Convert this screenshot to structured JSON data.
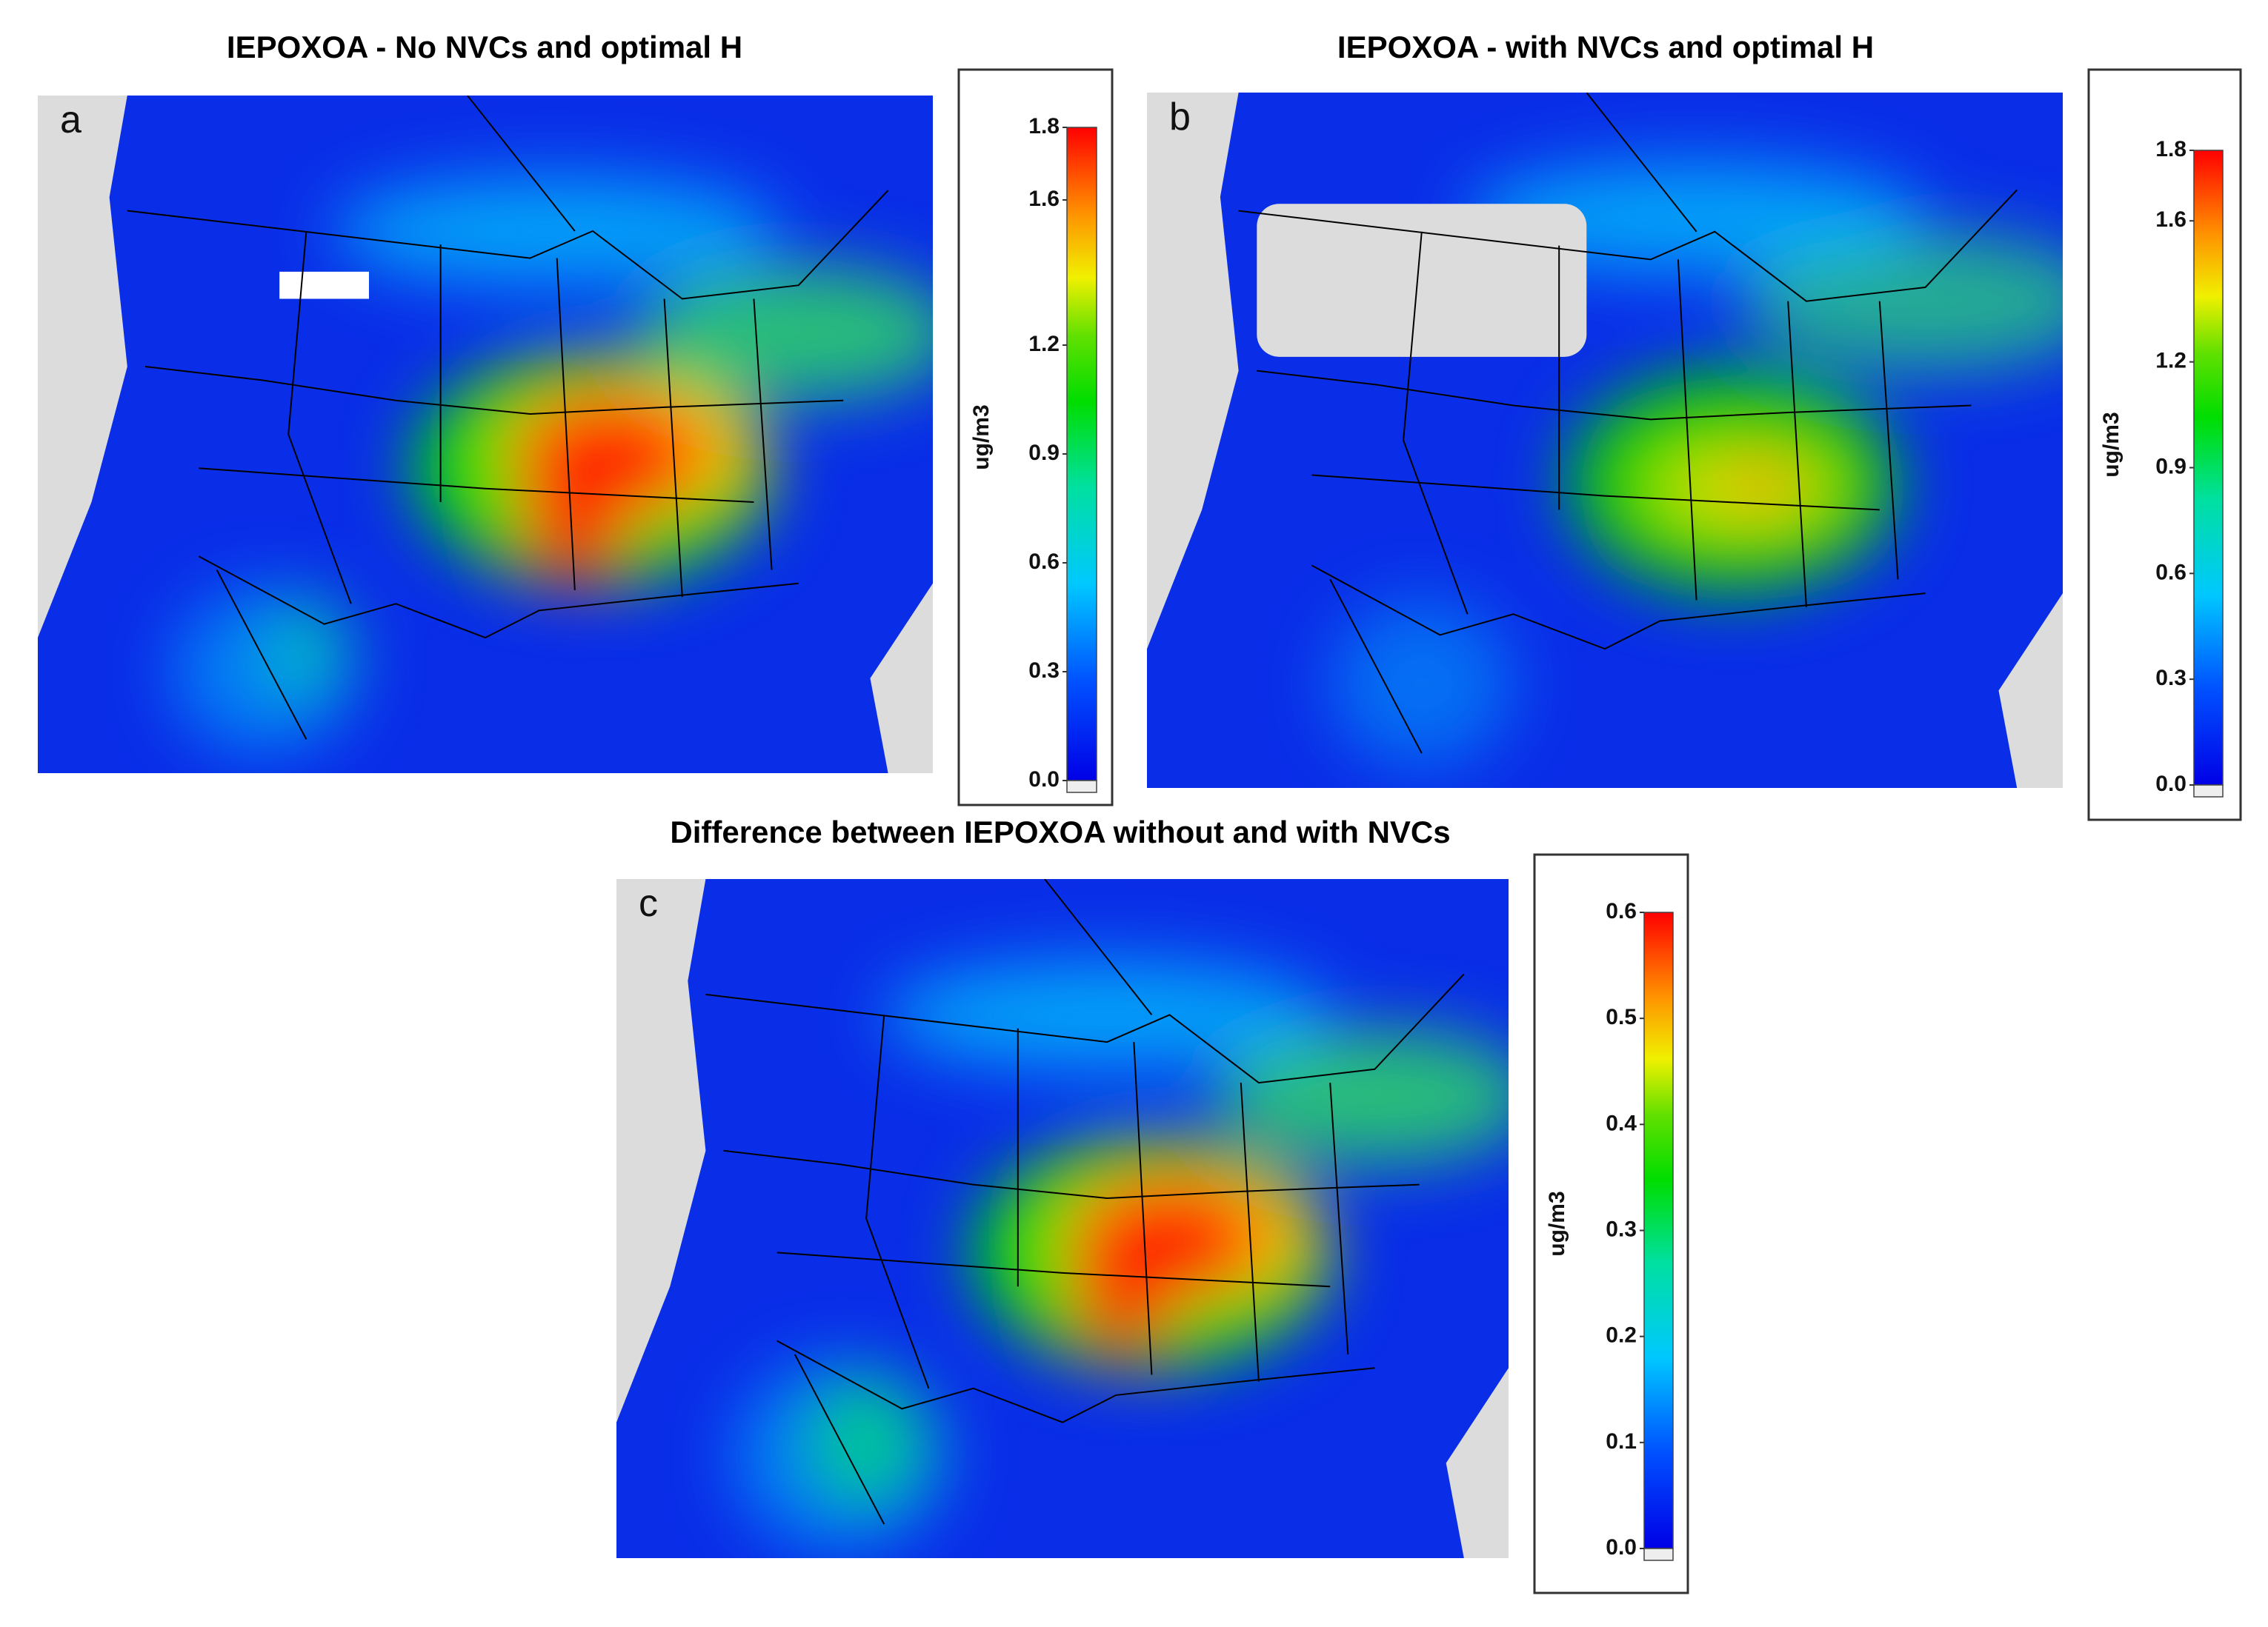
{
  "panels": [
    {
      "title": "IEPOXOA - No NVCs and optimal H",
      "letter": "a",
      "unit": "ug/m3",
      "colorbar": {
        "range": [
          0,
          1.8
        ],
        "ticks": [
          {
            "value": 0,
            "label": "0.0"
          },
          0.3,
          0.6,
          0.9,
          1.2,
          1.6,
          1.8
        ]
      }
    },
    {
      "title": "IEPOXOA - with NVCs and optimal H",
      "letter": "b",
      "unit": "ug/m3",
      "colorbar": {
        "range": [
          0,
          1.8
        ],
        "ticks": [
          {
            "value": 0,
            "label": "0.0"
          },
          0.3,
          0.6,
          0.9,
          1.2,
          1.6,
          1.8
        ]
      }
    },
    {
      "title": "Difference between IEPOXOA without and with NVCs",
      "letter": "c",
      "unit": "ug/m3",
      "colorbar": {
        "range": [
          0,
          0.6
        ],
        "ticks": [
          {
            "value": 0,
            "label": "0.0"
          },
          0.1,
          0.2,
          0.3,
          0.4,
          0.5,
          0.6
        ]
      }
    }
  ]
}
